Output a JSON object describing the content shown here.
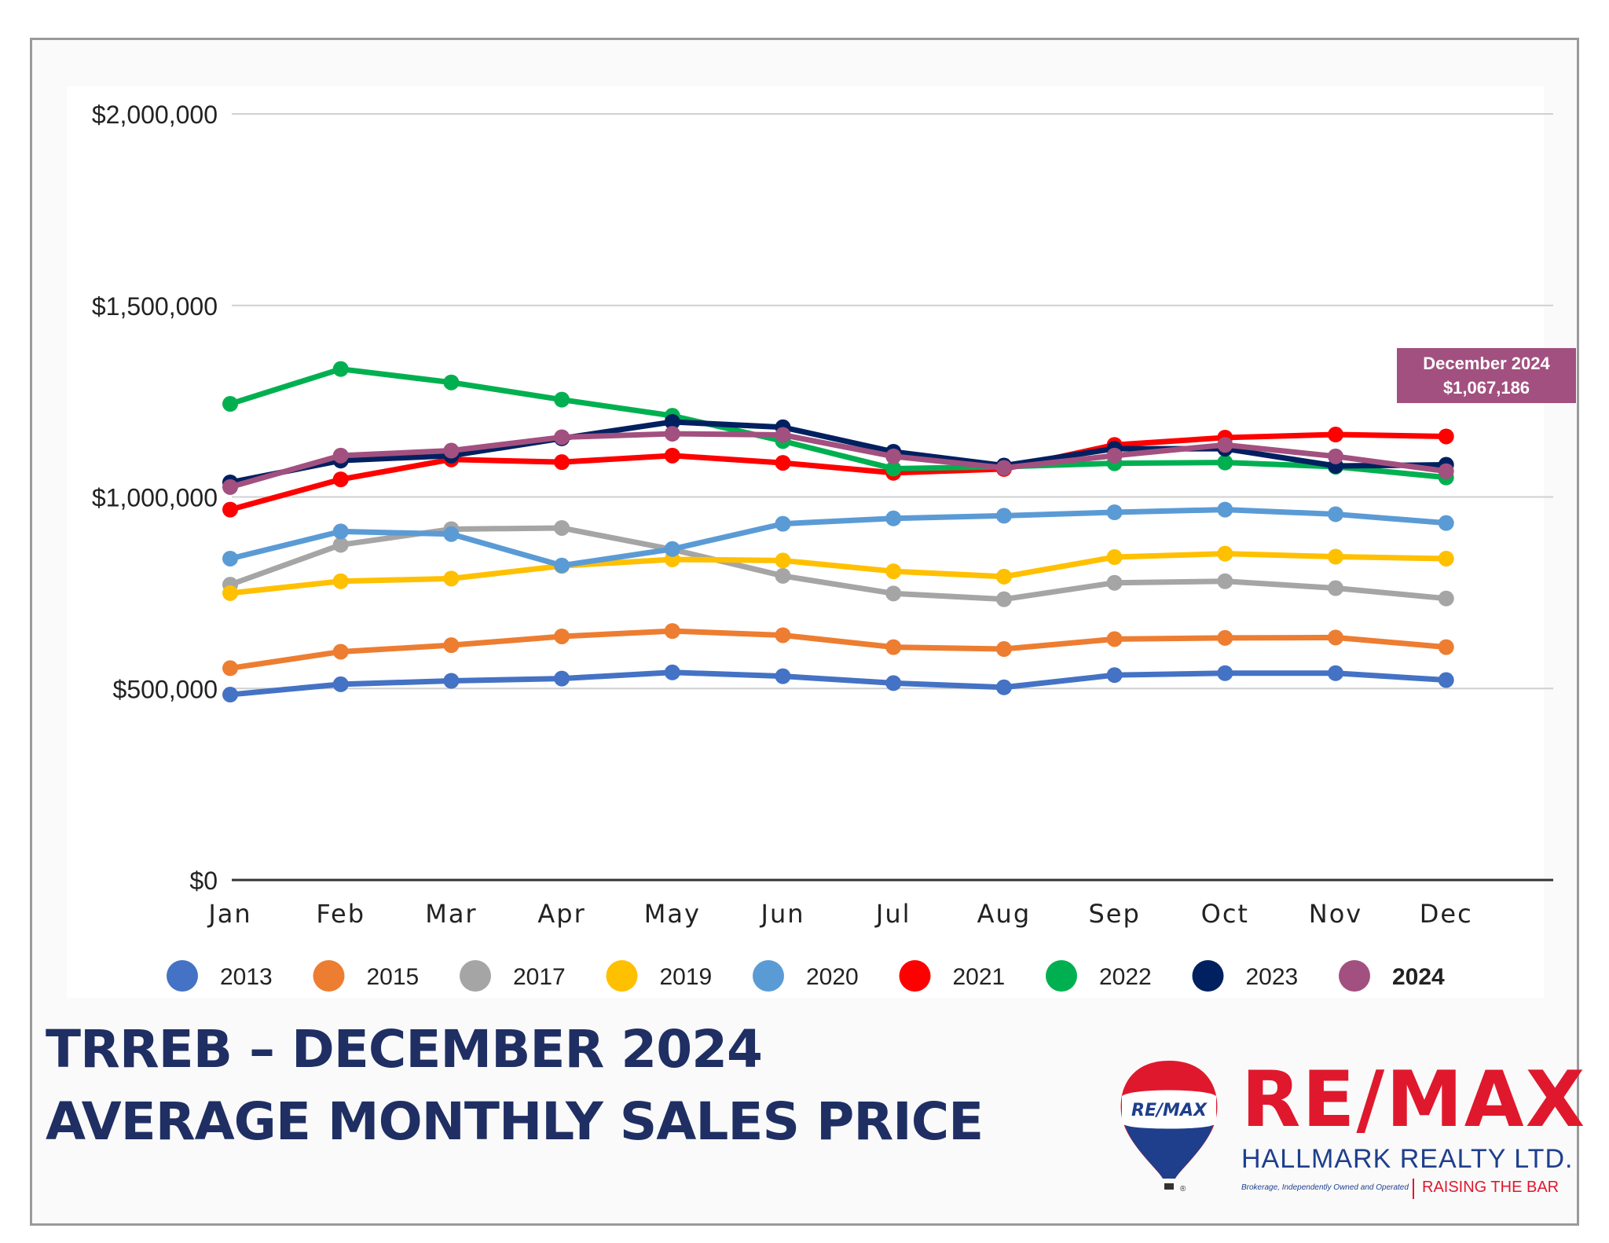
{
  "title": {
    "line1": "TRREB – DECEMBER 2024",
    "line2": "AVERAGE MONTHLY SALES PRICE"
  },
  "callout": {
    "line1": "December 2024",
    "line2": "$1,067,186",
    "color": "#a2507f"
  },
  "logo": {
    "balloon_text": "RE/MAX",
    "name": "RE/MAX",
    "subtitle": "HALLMARK REALTY LTD.",
    "tagline_small": "Brokerage, Independently Owned and Operated",
    "tagline": "RAISING THE BAR",
    "registered": "®",
    "colors": {
      "red": "#e0182d",
      "blue": "#1f3f8c",
      "white": "#ffffff"
    }
  },
  "chart_data": {
    "type": "line",
    "title": "",
    "xlabel": "",
    "ylabel": "",
    "ylim": [
      0,
      2000000
    ],
    "grid": true,
    "legend_position": "bottom",
    "yticks": [
      0,
      500000,
      1000000,
      1500000,
      2000000
    ],
    "ytick_labels": [
      "$0",
      "$500,000",
      "$1,000,000",
      "$1,500,000",
      "$2,000,000"
    ],
    "categories": [
      "Jan",
      "Feb",
      "Mar",
      "Apr",
      "May",
      "Jun",
      "Jul",
      "Aug",
      "Sep",
      "Oct",
      "Nov",
      "Dec"
    ],
    "series": [
      {
        "name": "2013",
        "color": "#4472c4",
        "bold": false,
        "values": [
          484000,
          511000,
          520000,
          526000,
          542000,
          532000,
          514000,
          503000,
          535000,
          540000,
          540000,
          522000
        ]
      },
      {
        "name": "2015",
        "color": "#ed7d31",
        "bold": false,
        "values": [
          553000,
          596000,
          613000,
          636000,
          650000,
          639000,
          608000,
          603000,
          629000,
          632000,
          633000,
          608000
        ]
      },
      {
        "name": "2017",
        "color": "#a5a5a5",
        "bold": false,
        "values": [
          771000,
          875000,
          916000,
          919000,
          863000,
          794000,
          748000,
          733000,
          776000,
          780000,
          762000,
          735000
        ]
      },
      {
        "name": "2019",
        "color": "#ffc000",
        "bold": false,
        "values": [
          749000,
          780000,
          787000,
          820000,
          837000,
          834000,
          806000,
          792000,
          843000,
          852000,
          844000,
          839000
        ]
      },
      {
        "name": "2020",
        "color": "#5b9bd5",
        "bold": false,
        "values": [
          839000,
          910000,
          903000,
          821000,
          864000,
          930000,
          944000,
          951000,
          960000,
          967000,
          955000,
          932000
        ]
      },
      {
        "name": "2021",
        "color": "#ff0000",
        "bold": false,
        "values": [
          967000,
          1046000,
          1098000,
          1091000,
          1108000,
          1089000,
          1063000,
          1073000,
          1136000,
          1155000,
          1163000,
          1158000
        ]
      },
      {
        "name": "2022",
        "color": "#00b050",
        "bold": false,
        "values": [
          1243000,
          1334000,
          1299000,
          1254000,
          1212000,
          1146000,
          1074000,
          1079000,
          1088000,
          1090000,
          1079000,
          1051000
        ]
      },
      {
        "name": "2023",
        "color": "#002060",
        "bold": false,
        "values": [
          1038000,
          1095000,
          1108000,
          1153000,
          1196000,
          1182000,
          1118000,
          1082000,
          1126000,
          1126000,
          1081000,
          1084000
        ]
      },
      {
        "name": "2024",
        "color": "#a2507f",
        "bold": true,
        "values": [
          1026000,
          1108000,
          1121000,
          1156000,
          1165000,
          1162000,
          1106000,
          1076000,
          1108000,
          1136000,
          1106000,
          1067186
        ]
      }
    ]
  }
}
